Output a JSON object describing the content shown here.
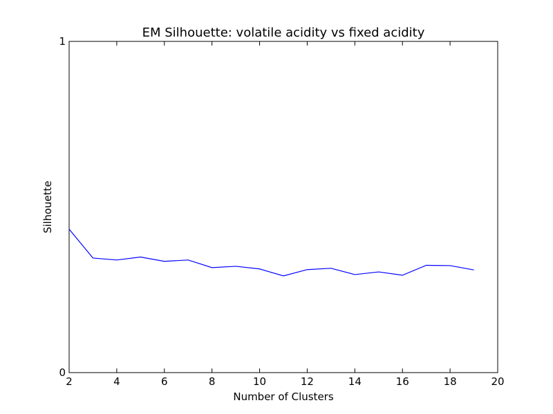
{
  "chart_data": {
    "type": "line",
    "title": "EM Silhouette: volatile acidity vs fixed acidity",
    "xlabel": "Number of Clusters",
    "ylabel": "Silhouette",
    "xlim": [
      2,
      20
    ],
    "ylim": [
      0,
      1
    ],
    "xticks": [
      2,
      4,
      6,
      8,
      10,
      12,
      14,
      16,
      18,
      20
    ],
    "yticks": [
      0,
      1
    ],
    "grid": false,
    "series": [
      {
        "color": "#0000ff",
        "x": [
          2,
          3,
          4,
          5,
          6,
          7,
          8,
          9,
          10,
          11,
          12,
          13,
          14,
          15,
          16,
          17,
          18,
          19
        ],
        "y": [
          0.433,
          0.346,
          0.34,
          0.349,
          0.336,
          0.34,
          0.317,
          0.321,
          0.313,
          0.292,
          0.311,
          0.315,
          0.296,
          0.304,
          0.294,
          0.324,
          0.323,
          0.31
        ]
      }
    ]
  }
}
